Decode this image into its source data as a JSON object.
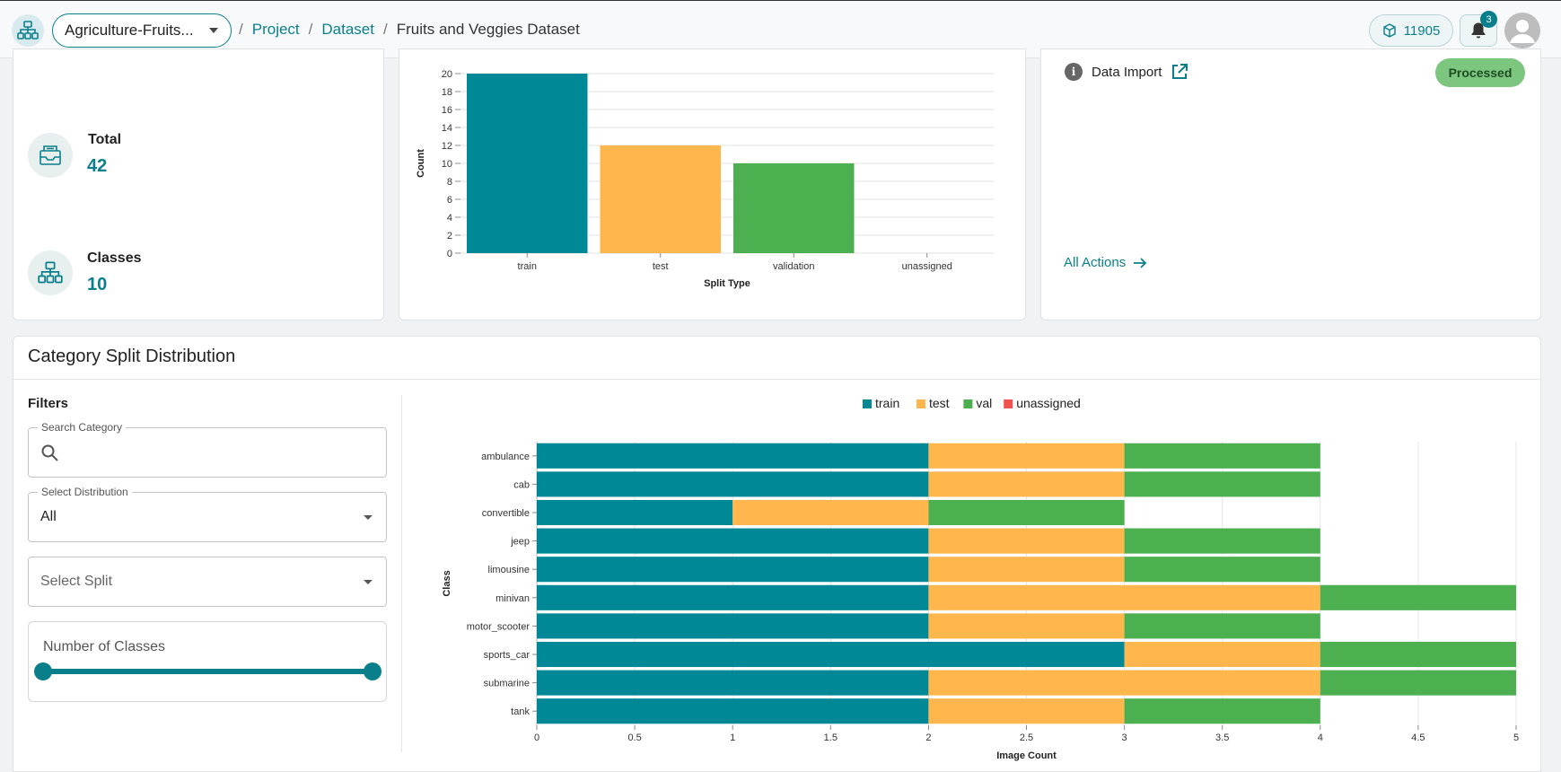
{
  "header": {
    "project_select": "Agriculture-Fruits...",
    "breadcrumb": {
      "project": "Project",
      "dataset": "Dataset",
      "current": "Fruits and Veggies Dataset",
      "separator": "/"
    },
    "credits": "11905",
    "notifications_count": "3",
    "icons": {
      "logo": "org-chart-icon",
      "credits": "cube-icon",
      "bell": "bell-icon",
      "avatar": "user-icon"
    }
  },
  "stats": {
    "total_label": "Total",
    "total_value": "42",
    "classes_label": "Classes",
    "classes_value": "10"
  },
  "actions_panel": {
    "data_import_label": "Data Import",
    "status": "Processed",
    "all_actions": "All Actions",
    "status_color": "#7cc67f"
  },
  "split_chart": {
    "title": "",
    "xlabel": "Split Type",
    "ylabel": "Count"
  },
  "category_section": {
    "title": "Category Split Distribution",
    "filters_title": "Filters",
    "search_label": "Search Category",
    "search_value": "",
    "distribution_label": "Select Distribution",
    "distribution_value": "All",
    "split_placeholder": "Select Split",
    "classes_slider_label": "Number of Classes",
    "classes_slider_range": [
      0,
      1
    ]
  },
  "colors": {
    "accent": "#0a7f8c",
    "train": "#008896",
    "test": "#ffb74d",
    "val": "#4caf50",
    "unassigned": "#ef5350"
  },
  "chart_data": [
    {
      "type": "bar",
      "categories": [
        "train",
        "test",
        "validation",
        "unassigned"
      ],
      "values": [
        20,
        12,
        10,
        0
      ],
      "colors": [
        "#008896",
        "#ffb74d",
        "#4caf50",
        "#ef5350"
      ],
      "title": "",
      "xlabel": "Split Type",
      "ylabel": "Count",
      "ylim": [
        0,
        20
      ],
      "yticks": [
        0,
        2,
        4,
        6,
        8,
        10,
        12,
        14,
        16,
        18,
        20
      ],
      "grid": true
    },
    {
      "type": "bar",
      "orientation": "horizontal",
      "stacked": true,
      "categories": [
        "ambulance",
        "cab",
        "convertible",
        "jeep",
        "limousine",
        "minivan",
        "motor_scooter",
        "sports_car",
        "submarine",
        "tank"
      ],
      "series": [
        {
          "name": "train",
          "values": [
            2,
            2,
            1,
            2,
            2,
            2,
            2,
            3,
            2,
            2
          ],
          "color": "#008896"
        },
        {
          "name": "test",
          "values": [
            1,
            1,
            1,
            1,
            1,
            2,
            1,
            1,
            2,
            1
          ],
          "color": "#ffb74d"
        },
        {
          "name": "val",
          "values": [
            1,
            1,
            1,
            1,
            1,
            1,
            1,
            1,
            1,
            1
          ],
          "color": "#4caf50"
        },
        {
          "name": "unassigned",
          "values": [
            0,
            0,
            0,
            0,
            0,
            0,
            0,
            0,
            0,
            0
          ],
          "color": "#ef5350"
        }
      ],
      "title": "",
      "xlabel": "Image Count",
      "ylabel": "Class",
      "xlim": [
        0,
        5
      ],
      "xticks": [
        "0",
        "0.5",
        "1",
        "1.5",
        "2",
        "2.5",
        "3",
        "3.5",
        "4",
        "4.5",
        "5"
      ],
      "legend": "top",
      "grid": true
    }
  ]
}
